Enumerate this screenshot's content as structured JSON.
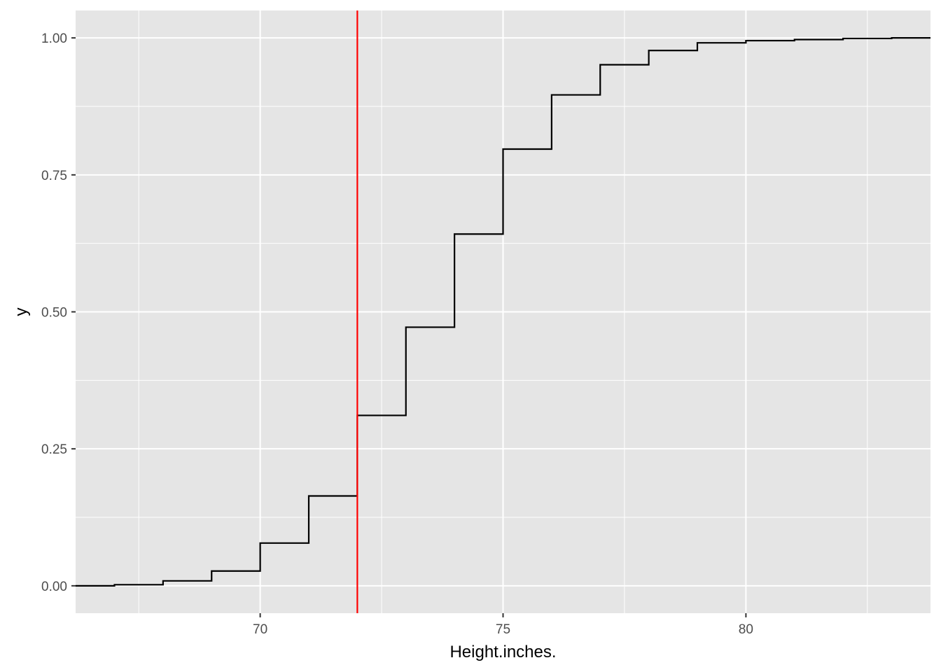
{
  "chart_data": {
    "type": "line",
    "subtype": "step (empirical cumulative distribution)",
    "title": "",
    "xlabel": "Height.inches.",
    "ylabel": "y",
    "xlim": [
      66.2,
      83.8
    ],
    "ylim": [
      -0.05,
      1.05
    ],
    "x_ticks": [
      70,
      75,
      80
    ],
    "x_tick_labels": [
      "70",
      "75",
      "80"
    ],
    "y_ticks": [
      0.0,
      0.25,
      0.5,
      0.75,
      1.0
    ],
    "y_tick_labels": [
      "0.00",
      "0.25",
      "0.50",
      "0.75",
      "1.00"
    ],
    "grid": true,
    "legend": "none",
    "series": [
      {
        "x": [
          66,
          67,
          68,
          69,
          70,
          71,
          72,
          73,
          74,
          75,
          76,
          77,
          78,
          79,
          80,
          81,
          82,
          83,
          84
        ],
        "y": [
          0.0,
          0.002,
          0.009,
          0.027,
          0.078,
          0.164,
          0.311,
          0.472,
          0.642,
          0.797,
          0.896,
          0.951,
          0.977,
          0.991,
          0.995,
          0.997,
          0.999,
          1.0,
          1.0
        ],
        "color": "#000000"
      }
    ],
    "reference_lines": [
      {
        "orientation": "vertical",
        "x": 72,
        "color": "#ff0000"
      }
    ],
    "colors": {
      "panel_background": "#e5e5e5",
      "grid": "#ffffff",
      "step_line": "#000000",
      "reference_line": "#ff0000"
    }
  }
}
